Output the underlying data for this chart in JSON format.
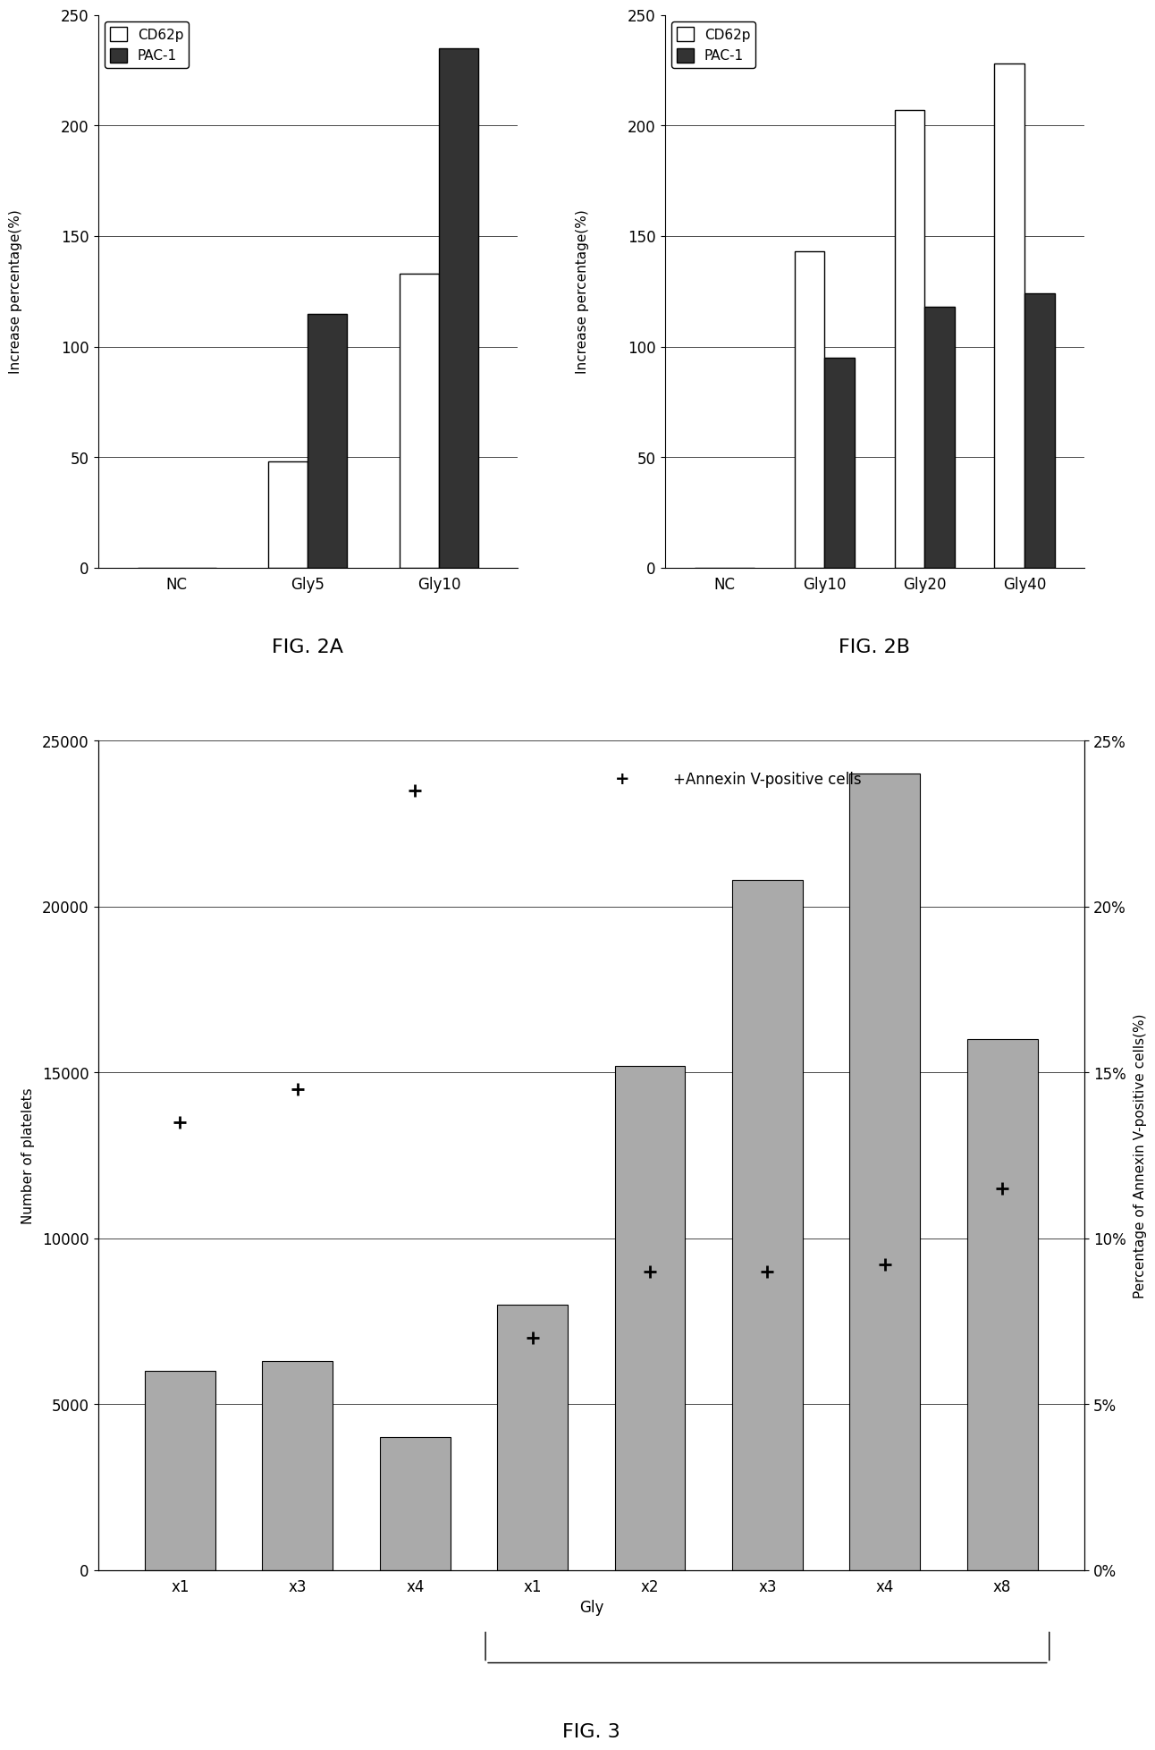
{
  "fig2a": {
    "categories": [
      "NC",
      "Gly5",
      "Gly10"
    ],
    "cd62p": [
      0,
      48,
      133
    ],
    "pac1": [
      0,
      115,
      235
    ],
    "ylim": [
      0,
      250
    ],
    "yticks": [
      0,
      50,
      100,
      150,
      200,
      250
    ],
    "ylabel": "Increase percentage(%)",
    "title": "FIG. 2A"
  },
  "fig2b": {
    "categories": [
      "NC",
      "Gly10",
      "Gly20",
      "Gly40"
    ],
    "cd62p": [
      0,
      143,
      207,
      228
    ],
    "pac1": [
      0,
      95,
      118,
      124
    ],
    "ylim": [
      0,
      250
    ],
    "yticks": [
      0,
      50,
      100,
      150,
      200,
      250
    ],
    "ylabel": "Increase percentage(%)",
    "title": "FIG. 2B"
  },
  "fig3": {
    "categories": [
      "x1",
      "x3",
      "x4",
      "x1",
      "x2",
      "x3",
      "x4",
      "x8"
    ],
    "bar_values": [
      6000,
      6300,
      4000,
      8000,
      15200,
      20800,
      24000,
      16000
    ],
    "annexin_pct": [
      13.5,
      14.5,
      23.5,
      7.0,
      9.0,
      9.0,
      9.2,
      11.5
    ],
    "ylim_left": [
      0,
      25000
    ],
    "yticks_left": [
      0,
      5000,
      10000,
      15000,
      20000,
      25000
    ],
    "ylim_right": [
      0,
      25
    ],
    "yticks_right": [
      0,
      5,
      10,
      15,
      20,
      25
    ],
    "ytick_labels_right": [
      "0%",
      "5%",
      "10%",
      "15%",
      "20%",
      "25%"
    ],
    "ylabel_left": "Number of platelets",
    "ylabel_right": "Percentage of Annexin V-positive cells(%)",
    "xlabel": "Gly",
    "title": "FIG. 3",
    "bar_color": "#aaaaaa",
    "annex_label": "+Annexin V-positive cells"
  },
  "colors": {
    "cd62p": "#ffffff",
    "pac1": "#333333",
    "bar_edge": "#000000",
    "background": "#ffffff"
  }
}
